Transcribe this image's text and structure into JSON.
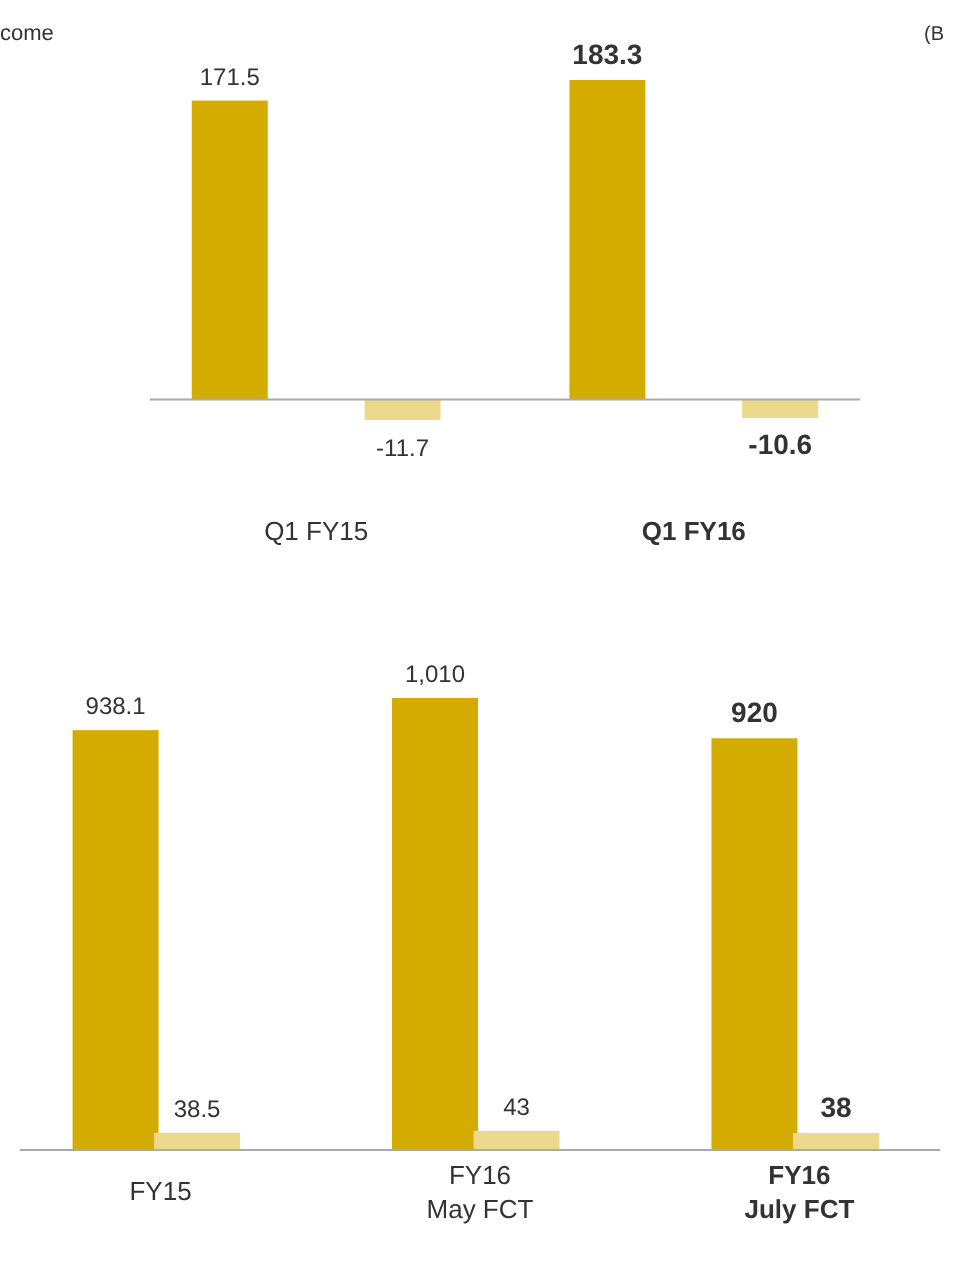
{
  "chart_data": [
    {
      "type": "bar",
      "title": "come",
      "annotations": [
        "(B"
      ],
      "categories": [
        "Q1 FY15",
        "Q1 FY16"
      ],
      "series": [
        {
          "color": "#d4ac00",
          "values": [
            171.5,
            183.3
          ],
          "value_labels": [
            "171.5",
            "183.3"
          ]
        },
        {
          "color": "#ecd98c",
          "values": [
            -11.7,
            -10.6
          ],
          "value_labels": [
            "-11.7",
            "-10.6"
          ]
        }
      ]
    },
    {
      "type": "bar",
      "categories": [
        "FY15",
        "FY16\nMay FCT",
        "FY16\nJuly FCT"
      ],
      "series": [
        {
          "color": "#d4ac00",
          "values": [
            938.1,
            1010,
            920
          ],
          "value_labels": [
            "938.1",
            "1,010",
            "920"
          ]
        },
        {
          "color": "#ecd98c",
          "values": [
            38.5,
            43,
            38
          ],
          "value_labels": [
            "38.5",
            "43",
            "38"
          ]
        }
      ]
    }
  ]
}
